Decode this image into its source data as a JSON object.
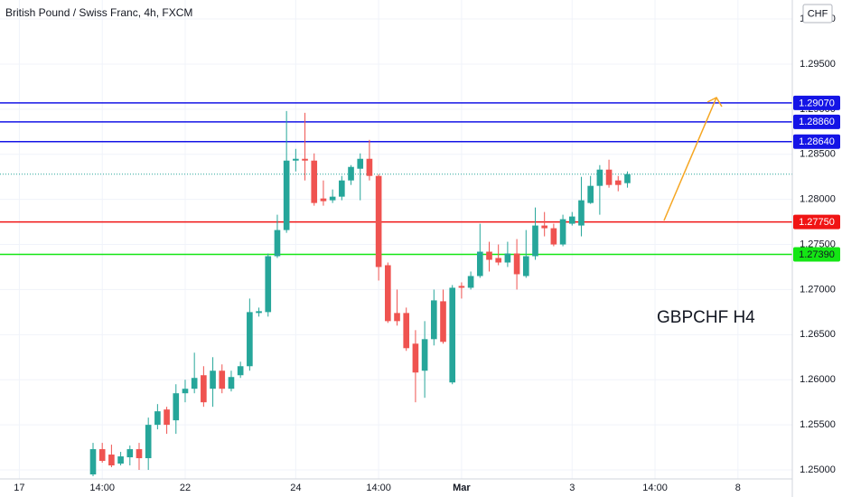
{
  "chart_data": {
    "type": "candlestick",
    "title": "British Pound / Swiss Franc, 4h, FXCM",
    "currency": "CHF",
    "annotation": "GBPCHF H4",
    "up_color": "#26a69a",
    "down_color": "#ef5350",
    "open": [
      1.2495,
      1.2523,
      1.2517,
      1.2507,
      1.2514,
      1.2523,
      1.2513,
      1.255,
      1.2567,
      1.2555,
      1.2585,
      1.259,
      1.2605,
      1.259,
      1.261,
      1.259,
      1.2605,
      1.2615,
      1.2674,
      1.2675,
      1.2737,
      1.2766,
      1.2843,
      1.2845,
      1.2843,
      1.2801,
      1.2799,
      1.2803,
      1.2821,
      1.2834,
      1.2845,
      1.2826,
      1.2727,
      1.2674,
      1.2674,
      1.264,
      1.261,
      1.2645,
      1.2687,
      1.2597,
      1.2704,
      1.2702,
      1.2715,
      1.2742,
      1.2735,
      1.273,
      1.274,
      1.2715,
      1.2737,
      1.2771,
      1.2768,
      1.275,
      1.2773,
      1.2771,
      1.2796,
      1.2815,
      1.2833,
      1.2821,
      1.2818
    ],
    "high": [
      1.253,
      1.253,
      1.2528,
      1.252,
      1.2527,
      1.253,
      1.2558,
      1.2573,
      1.257,
      1.2595,
      1.26,
      1.263,
      1.2615,
      1.2625,
      1.2617,
      1.261,
      1.262,
      1.269,
      1.268,
      1.274,
      1.2783,
      1.2898,
      1.2856,
      1.2896,
      1.2851,
      1.2821,
      1.2811,
      1.2826,
      1.2838,
      1.2851,
      1.2866,
      1.2828,
      1.273,
      1.27,
      1.268,
      1.2655,
      1.2665,
      1.27,
      1.27,
      1.2705,
      1.2708,
      1.272,
      1.2773,
      1.2753,
      1.275,
      1.2753,
      1.2756,
      1.2766,
      1.2791,
      1.2786,
      1.2773,
      1.2783,
      1.2786,
      1.2825,
      1.2826,
      1.2838,
      1.2844,
      1.2826,
      1.2831
    ],
    "low": [
      1.2493,
      1.2508,
      1.2503,
      1.2505,
      1.2505,
      1.25,
      1.25,
      1.2545,
      1.254,
      1.254,
      1.2575,
      1.2585,
      1.257,
      1.257,
      1.2585,
      1.2587,
      1.2602,
      1.261,
      1.267,
      1.267,
      1.2735,
      1.2763,
      1.2831,
      1.2821,
      1.2793,
      1.2793,
      1.2796,
      1.2799,
      1.2816,
      1.2799,
      1.2821,
      1.271,
      1.2663,
      1.266,
      1.2632,
      1.2575,
      1.258,
      1.2638,
      1.264,
      1.2595,
      1.269,
      1.27,
      1.2713,
      1.272,
      1.2727,
      1.2725,
      1.27,
      1.2713,
      1.2733,
      1.2759,
      1.2748,
      1.2748,
      1.2771,
      1.2759,
      1.2795,
      1.2783,
      1.2813,
      1.2809,
      1.2813
    ],
    "close": [
      1.2523,
      1.251,
      1.2505,
      1.2515,
      1.2523,
      1.2513,
      1.255,
      1.2565,
      1.255,
      1.2585,
      1.259,
      1.2602,
      1.2575,
      1.261,
      1.259,
      1.2603,
      1.2615,
      1.2675,
      1.2676,
      1.2737,
      1.2766,
      1.2843,
      1.2845,
      1.2843,
      1.2796,
      1.2798,
      1.2803,
      1.2821,
      1.2836,
      1.2845,
      1.2826,
      1.2725,
      1.2665,
      1.2665,
      1.2635,
      1.2608,
      1.2645,
      1.2688,
      1.2642,
      1.2702,
      1.2702,
      1.2715,
      1.2742,
      1.2733,
      1.273,
      1.274,
      1.2717,
      1.2737,
      1.2771,
      1.2768,
      1.275,
      1.2778,
      1.2781,
      1.2799,
      1.2815,
      1.2833,
      1.2816,
      1.2816,
      1.2828
    ],
    "xlim": [
      -10.1,
      75.9
    ],
    "xticks": [
      {
        "value": -8,
        "label": "17"
      },
      {
        "value": 1,
        "label": "14:00"
      },
      {
        "value": 10,
        "label": "22"
      },
      {
        "value": 22,
        "label": "24"
      },
      {
        "value": 31,
        "label": "14:00"
      },
      {
        "value": 40,
        "label": "Mar"
      },
      {
        "value": 52,
        "label": "3"
      },
      {
        "value": 61,
        "label": "14:00"
      },
      {
        "value": 70,
        "label": "8"
      }
    ],
    "ylim": [
      1.249,
      1.30211
    ],
    "yticks": [
      {
        "value": 1.25,
        "label": "1.25000"
      },
      {
        "value": 1.255,
        "label": "1.25500"
      },
      {
        "value": 1.26,
        "label": "1.26000"
      },
      {
        "value": 1.265,
        "label": "1.26500"
      },
      {
        "value": 1.27,
        "label": "1.27000"
      },
      {
        "value": 1.275,
        "label": "1.27500"
      },
      {
        "value": 1.28,
        "label": "1.28000"
      },
      {
        "value": 1.285,
        "label": "1.28500"
      },
      {
        "value": 1.29,
        "label": "1.29000"
      },
      {
        "value": 1.295,
        "label": "1.29500"
      },
      {
        "value": 1.3,
        "label": "1.30000"
      }
    ],
    "grid": true,
    "levels": [
      {
        "value": 1.2907,
        "label": "1.29070",
        "color": "#1414e6",
        "text_color": "#ffffff"
      },
      {
        "value": 1.2886,
        "label": "1.28860",
        "color": "#1414e6",
        "text_color": "#ffffff"
      },
      {
        "value": 1.2864,
        "label": "1.28640",
        "color": "#1414e6",
        "text_color": "#ffffff"
      },
      {
        "value": 1.2775,
        "label": "1.27750",
        "color": "#f01414",
        "text_color": "#ffffff"
      },
      {
        "value": 1.2739,
        "label": "1.27390",
        "color": "#14e614",
        "text_color": "#131722"
      }
    ]
  }
}
